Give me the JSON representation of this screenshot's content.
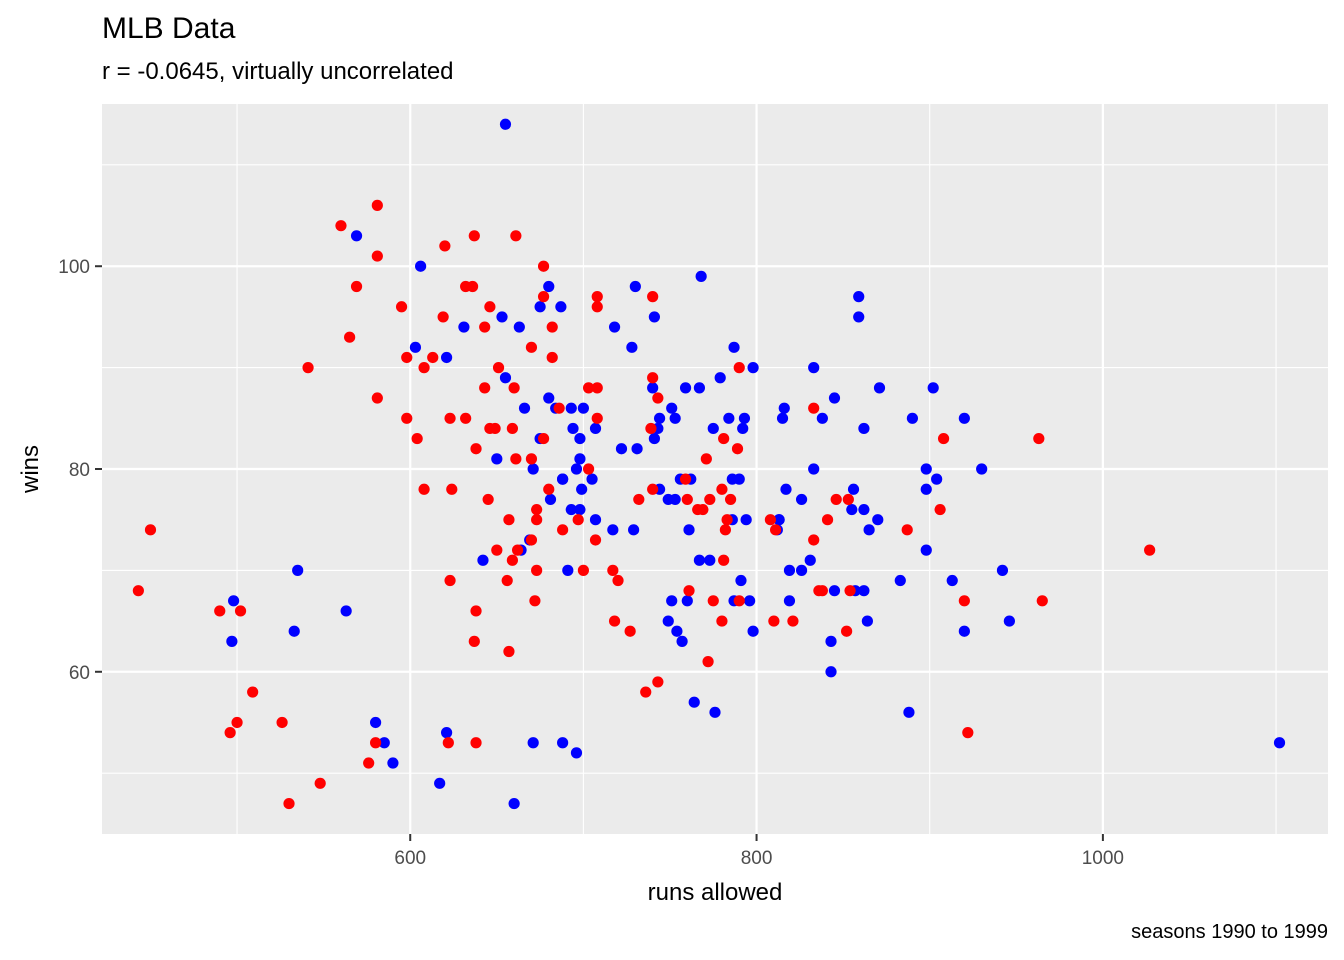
{
  "chart_data": {
    "type": "scatter",
    "title": "MLB Data",
    "subtitle": "r = -0.0645, virtually uncorrelated",
    "caption": "seasons 1990 to 1999",
    "xlabel": "runs allowed",
    "ylabel": "wins",
    "xlim": [
      422,
      1130
    ],
    "ylim": [
      44,
      116
    ],
    "x_ticks": [
      600,
      800,
      1000
    ],
    "x_tick_labels": [
      "600",
      "800",
      "1000"
    ],
    "y_ticks": [
      60,
      80,
      100
    ],
    "y_tick_labels": [
      "60",
      "80",
      "100"
    ],
    "grid": true,
    "colors": {
      "panel": "#EBEBEB",
      "grid": "#FFFFFF",
      "blue": "#0000FF",
      "red": "#FF0000"
    },
    "series": [
      {
        "color": "#0000FF",
        "points": [
          [
            655,
            114
          ],
          [
            569,
            103
          ],
          [
            606,
            100
          ],
          [
            768,
            99
          ],
          [
            680,
            98
          ],
          [
            730,
            98
          ],
          [
            859,
            97
          ],
          [
            675,
            96
          ],
          [
            687,
            96
          ],
          [
            653,
            95
          ],
          [
            741,
            95
          ],
          [
            859,
            95
          ],
          [
            631,
            94
          ],
          [
            663,
            94
          ],
          [
            718,
            94
          ],
          [
            603,
            92
          ],
          [
            728,
            92
          ],
          [
            787,
            92
          ],
          [
            621,
            91
          ],
          [
            655,
            89
          ],
          [
            779,
            89
          ],
          [
            798,
            90
          ],
          [
            833,
            90
          ],
          [
            740,
            88
          ],
          [
            759,
            88
          ],
          [
            767,
            88
          ],
          [
            871,
            88
          ],
          [
            902,
            88
          ],
          [
            680,
            87
          ],
          [
            845,
            87
          ],
          [
            666,
            86
          ],
          [
            684,
            86
          ],
          [
            693,
            86
          ],
          [
            700,
            86
          ],
          [
            751,
            86
          ],
          [
            816,
            86
          ],
          [
            744,
            85
          ],
          [
            784,
            85
          ],
          [
            793,
            85
          ],
          [
            815,
            85
          ],
          [
            838,
            85
          ],
          [
            890,
            85
          ],
          [
            920,
            85
          ],
          [
            694,
            84
          ],
          [
            707,
            84
          ],
          [
            743,
            84
          ],
          [
            775,
            84
          ],
          [
            792,
            84
          ],
          [
            862,
            84
          ],
          [
            675,
            83
          ],
          [
            698,
            83
          ],
          [
            698,
            81
          ],
          [
            722,
            82
          ],
          [
            731,
            82
          ],
          [
            753,
            85
          ],
          [
            741,
            83
          ],
          [
            696,
            80
          ],
          [
            699,
            78
          ],
          [
            705,
            79
          ],
          [
            898,
            80
          ],
          [
            930,
            80
          ],
          [
            833,
            80
          ],
          [
            688,
            79
          ],
          [
            756,
            79
          ],
          [
            786,
            79
          ],
          [
            790,
            79
          ],
          [
            904,
            79
          ],
          [
            671,
            80
          ],
          [
            681,
            77
          ],
          [
            744,
            78
          ],
          [
            817,
            78
          ],
          [
            856,
            78
          ],
          [
            898,
            78
          ],
          [
            707,
            75
          ],
          [
            717,
            74
          ],
          [
            729,
            74
          ],
          [
            749,
            77
          ],
          [
            753,
            77
          ],
          [
            762,
            79
          ],
          [
            826,
            77
          ],
          [
            855,
            76
          ],
          [
            812,
            74
          ],
          [
            813,
            75
          ],
          [
            862,
            76
          ],
          [
            870,
            75
          ],
          [
            865,
            74
          ],
          [
            688,
            79
          ],
          [
            693,
            76
          ],
          [
            698,
            76
          ],
          [
            786,
            75
          ],
          [
            794,
            75
          ],
          [
            642,
            71
          ],
          [
            650,
            81
          ],
          [
            664,
            72
          ],
          [
            669,
            73
          ],
          [
            691,
            70
          ],
          [
            751,
            67
          ],
          [
            760,
            67
          ],
          [
            749,
            65
          ],
          [
            757,
            63
          ],
          [
            761,
            74
          ],
          [
            767,
            71
          ],
          [
            754,
            64
          ],
          [
            773,
            71
          ],
          [
            787,
            67
          ],
          [
            791,
            69
          ],
          [
            796,
            67
          ],
          [
            798,
            64
          ],
          [
            819,
            70
          ],
          [
            819,
            67
          ],
          [
            826,
            70
          ],
          [
            831,
            71
          ],
          [
            843,
            63
          ],
          [
            845,
            68
          ],
          [
            857,
            68
          ],
          [
            862,
            68
          ],
          [
            864,
            65
          ],
          [
            883,
            69
          ],
          [
            898,
            72
          ],
          [
            913,
            69
          ],
          [
            920,
            64
          ],
          [
            942,
            70
          ],
          [
            946,
            65
          ],
          [
            888,
            56
          ],
          [
            843,
            60
          ],
          [
            764,
            57
          ],
          [
            776,
            56
          ],
          [
            498,
            67
          ],
          [
            497,
            63
          ],
          [
            535,
            70
          ],
          [
            533,
            64
          ],
          [
            563,
            66
          ],
          [
            580,
            55
          ],
          [
            585,
            53
          ],
          [
            590,
            51
          ],
          [
            617,
            49
          ],
          [
            621,
            54
          ],
          [
            660,
            47
          ],
          [
            671,
            53
          ],
          [
            688,
            53
          ],
          [
            696,
            52
          ],
          [
            1102,
            53
          ],
          [
            813,
            75
          ]
        ]
      },
      {
        "color": "#FF0000",
        "points": [
          [
            581,
            106
          ],
          [
            560,
            104
          ],
          [
            661,
            103
          ],
          [
            637,
            103
          ],
          [
            620,
            102
          ],
          [
            581,
            101
          ],
          [
            677,
            100
          ],
          [
            569,
            98
          ],
          [
            632,
            98
          ],
          [
            636,
            98
          ],
          [
            677,
            97
          ],
          [
            708,
            97
          ],
          [
            740,
            97
          ],
          [
            595,
            96
          ],
          [
            646,
            96
          ],
          [
            708,
            96
          ],
          [
            619,
            95
          ],
          [
            682,
            94
          ],
          [
            643,
            94
          ],
          [
            565,
            93
          ],
          [
            670,
            92
          ],
          [
            613,
            91
          ],
          [
            598,
            91
          ],
          [
            682,
            91
          ],
          [
            608,
            90
          ],
          [
            541,
            90
          ],
          [
            651,
            90
          ],
          [
            790,
            90
          ],
          [
            740,
            89
          ],
          [
            703,
            88
          ],
          [
            708,
            88
          ],
          [
            643,
            88
          ],
          [
            660,
            88
          ],
          [
            581,
            87
          ],
          [
            743,
            87
          ],
          [
            686,
            86
          ],
          [
            833,
            86
          ],
          [
            598,
            85
          ],
          [
            623,
            85
          ],
          [
            632,
            85
          ],
          [
            708,
            85
          ],
          [
            739,
            84
          ],
          [
            646,
            84
          ],
          [
            649,
            84
          ],
          [
            659,
            84
          ],
          [
            604,
            83
          ],
          [
            677,
            83
          ],
          [
            781,
            83
          ],
          [
            908,
            83
          ],
          [
            963,
            83
          ],
          [
            638,
            82
          ],
          [
            789,
            82
          ],
          [
            661,
            81
          ],
          [
            670,
            81
          ],
          [
            771,
            81
          ],
          [
            703,
            80
          ],
          [
            608,
            78
          ],
          [
            624,
            78
          ],
          [
            680,
            78
          ],
          [
            740,
            78
          ],
          [
            759,
            79
          ],
          [
            780,
            78
          ],
          [
            645,
            77
          ],
          [
            673,
            76
          ],
          [
            732,
            77
          ],
          [
            760,
            77
          ],
          [
            785,
            77
          ],
          [
            846,
            77
          ],
          [
            853,
            77
          ],
          [
            766,
            76
          ],
          [
            773,
            77
          ],
          [
            769,
            76
          ],
          [
            887,
            74
          ],
          [
            906,
            76
          ],
          [
            783,
            75
          ],
          [
            697,
            75
          ],
          [
            657,
            75
          ],
          [
            673,
            75
          ],
          [
            808,
            75
          ],
          [
            841,
            75
          ],
          [
            650,
            72
          ],
          [
            659,
            71
          ],
          [
            662,
            72
          ],
          [
            670,
            73
          ],
          [
            707,
            73
          ],
          [
            688,
            74
          ],
          [
            782,
            74
          ],
          [
            811,
            74
          ],
          [
            833,
            73
          ],
          [
            700,
            70
          ],
          [
            673,
            70
          ],
          [
            656,
            69
          ],
          [
            717,
            70
          ],
          [
            720,
            69
          ],
          [
            781,
            71
          ],
          [
            838,
            68
          ],
          [
            836,
            68
          ],
          [
            854,
            68
          ],
          [
            672,
            67
          ],
          [
            623,
            69
          ],
          [
            638,
            66
          ],
          [
            718,
            65
          ],
          [
            727,
            64
          ],
          [
            761,
            68
          ],
          [
            775,
            67
          ],
          [
            780,
            65
          ],
          [
            790,
            67
          ],
          [
            810,
            65
          ],
          [
            821,
            65
          ],
          [
            852,
            64
          ],
          [
            920,
            67
          ],
          [
            965,
            67
          ],
          [
            1027,
            72
          ],
          [
            450,
            74
          ],
          [
            443,
            68
          ],
          [
            490,
            66
          ],
          [
            502,
            66
          ],
          [
            637,
            63
          ],
          [
            657,
            62
          ],
          [
            772,
            61
          ],
          [
            743,
            59
          ],
          [
            736,
            58
          ],
          [
            509,
            58
          ],
          [
            500,
            55
          ],
          [
            496,
            54
          ],
          [
            526,
            55
          ],
          [
            580,
            53
          ],
          [
            576,
            51
          ],
          [
            622,
            53
          ],
          [
            638,
            53
          ],
          [
            922,
            54
          ],
          [
            530,
            47
          ],
          [
            548,
            49
          ]
        ]
      }
    ]
  }
}
